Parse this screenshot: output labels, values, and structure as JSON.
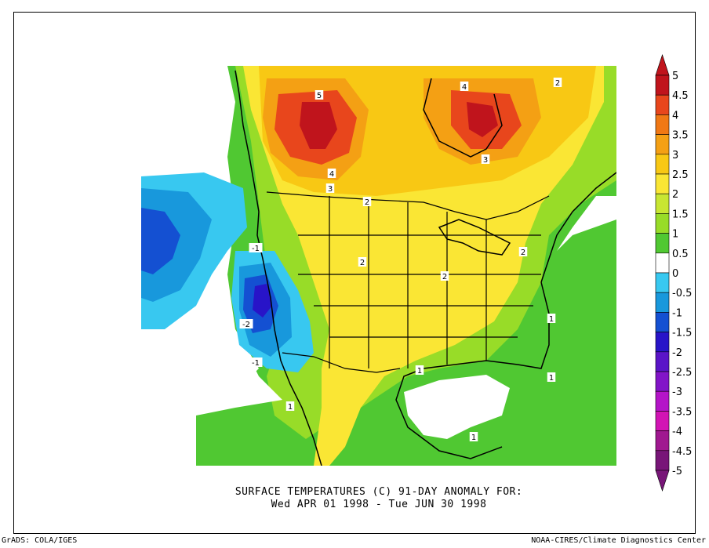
{
  "map": {
    "title_line1": "SURFACE TEMPERATURES (C)   91-DAY ANOMALY FOR:",
    "title_line2": "Wed APR 01 1998 - Tue JUN 30 1998",
    "footer_left": "GrADS: COLA/IGES",
    "footer_right": "NOAA-CIRES/Climate Diagnostics Center"
  },
  "colorbar": {
    "labels": [
      "5",
      "4.5",
      "4",
      "3.5",
      "3",
      "2.5",
      "2",
      "1.5",
      "1",
      "0.5",
      "0",
      "-0.5",
      "-1",
      "-1.5",
      "-2",
      "-2.5",
      "-3",
      "-3.5",
      "-4",
      "-4.5",
      "-5"
    ],
    "colors": [
      "#c0141c",
      "#e8461c",
      "#f07814",
      "#f4a014",
      "#f8c814",
      "#fae634",
      "#c8e632",
      "#98dc28",
      "#50c832",
      "#ffffff",
      "#38c8f0",
      "#1898dc",
      "#1450d2",
      "#2814c8",
      "#5a14c8",
      "#8214c8",
      "#b414c8",
      "#d214b4",
      "#a01890",
      "#781678"
    ]
  },
  "contour_labels": [
    "5",
    "4",
    "4",
    "3",
    "3",
    "2",
    "2",
    "2",
    "2",
    "2",
    "1",
    "1",
    "1",
    "1",
    "1",
    "-1",
    "-2",
    "-1"
  ]
}
